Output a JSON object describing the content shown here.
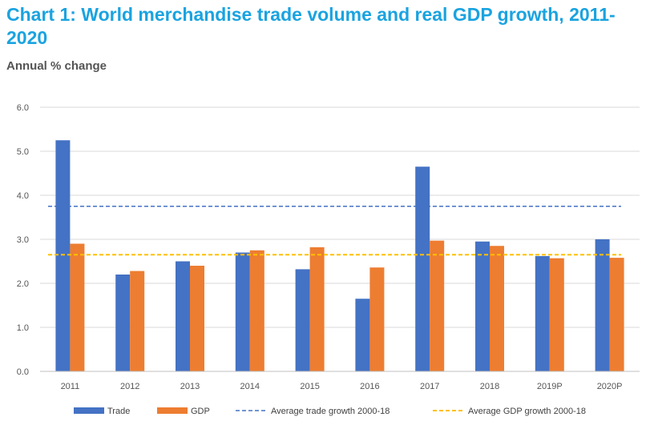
{
  "header": {
    "title": "Chart 1: World merchandise trade volume and real GDP growth, 2011-2020",
    "subtitle": "Annual % change"
  },
  "colors": {
    "title": "#1aa3e0",
    "trade": "#4472c4",
    "gdp": "#ed7d31",
    "avg_trade": "#4472c4",
    "avg_gdp": "#ffc000",
    "grid": "#d9d9d9"
  },
  "chart_data": {
    "type": "bar",
    "title": "Chart 1: World merchandise trade volume and real GDP growth, 2011-2020",
    "ylabel": "Annual % change",
    "xlabel": "",
    "ylim": [
      0,
      6
    ],
    "yticks": [
      "0.0",
      "1.0",
      "2.0",
      "3.0",
      "4.0",
      "5.0",
      "6.0"
    ],
    "grid": true,
    "legend_position": "bottom",
    "categories": [
      "2011",
      "2012",
      "2013",
      "2014",
      "2015",
      "2016",
      "2017",
      "2018",
      "2019P",
      "2020P"
    ],
    "series": [
      {
        "name": "Trade",
        "values": [
          5.25,
          2.2,
          2.5,
          2.7,
          2.32,
          1.65,
          4.65,
          2.95,
          2.62,
          3.0
        ]
      },
      {
        "name": "GDP",
        "values": [
          2.9,
          2.28,
          2.4,
          2.75,
          2.82,
          2.36,
          2.97,
          2.85,
          2.57,
          2.58
        ]
      }
    ],
    "reference_lines": [
      {
        "name": "Average trade growth 2000-18",
        "value": 3.75,
        "style": "dashed"
      },
      {
        "name": "Average GDP growth 2000-18",
        "value": 2.65,
        "style": "dashed"
      }
    ]
  }
}
